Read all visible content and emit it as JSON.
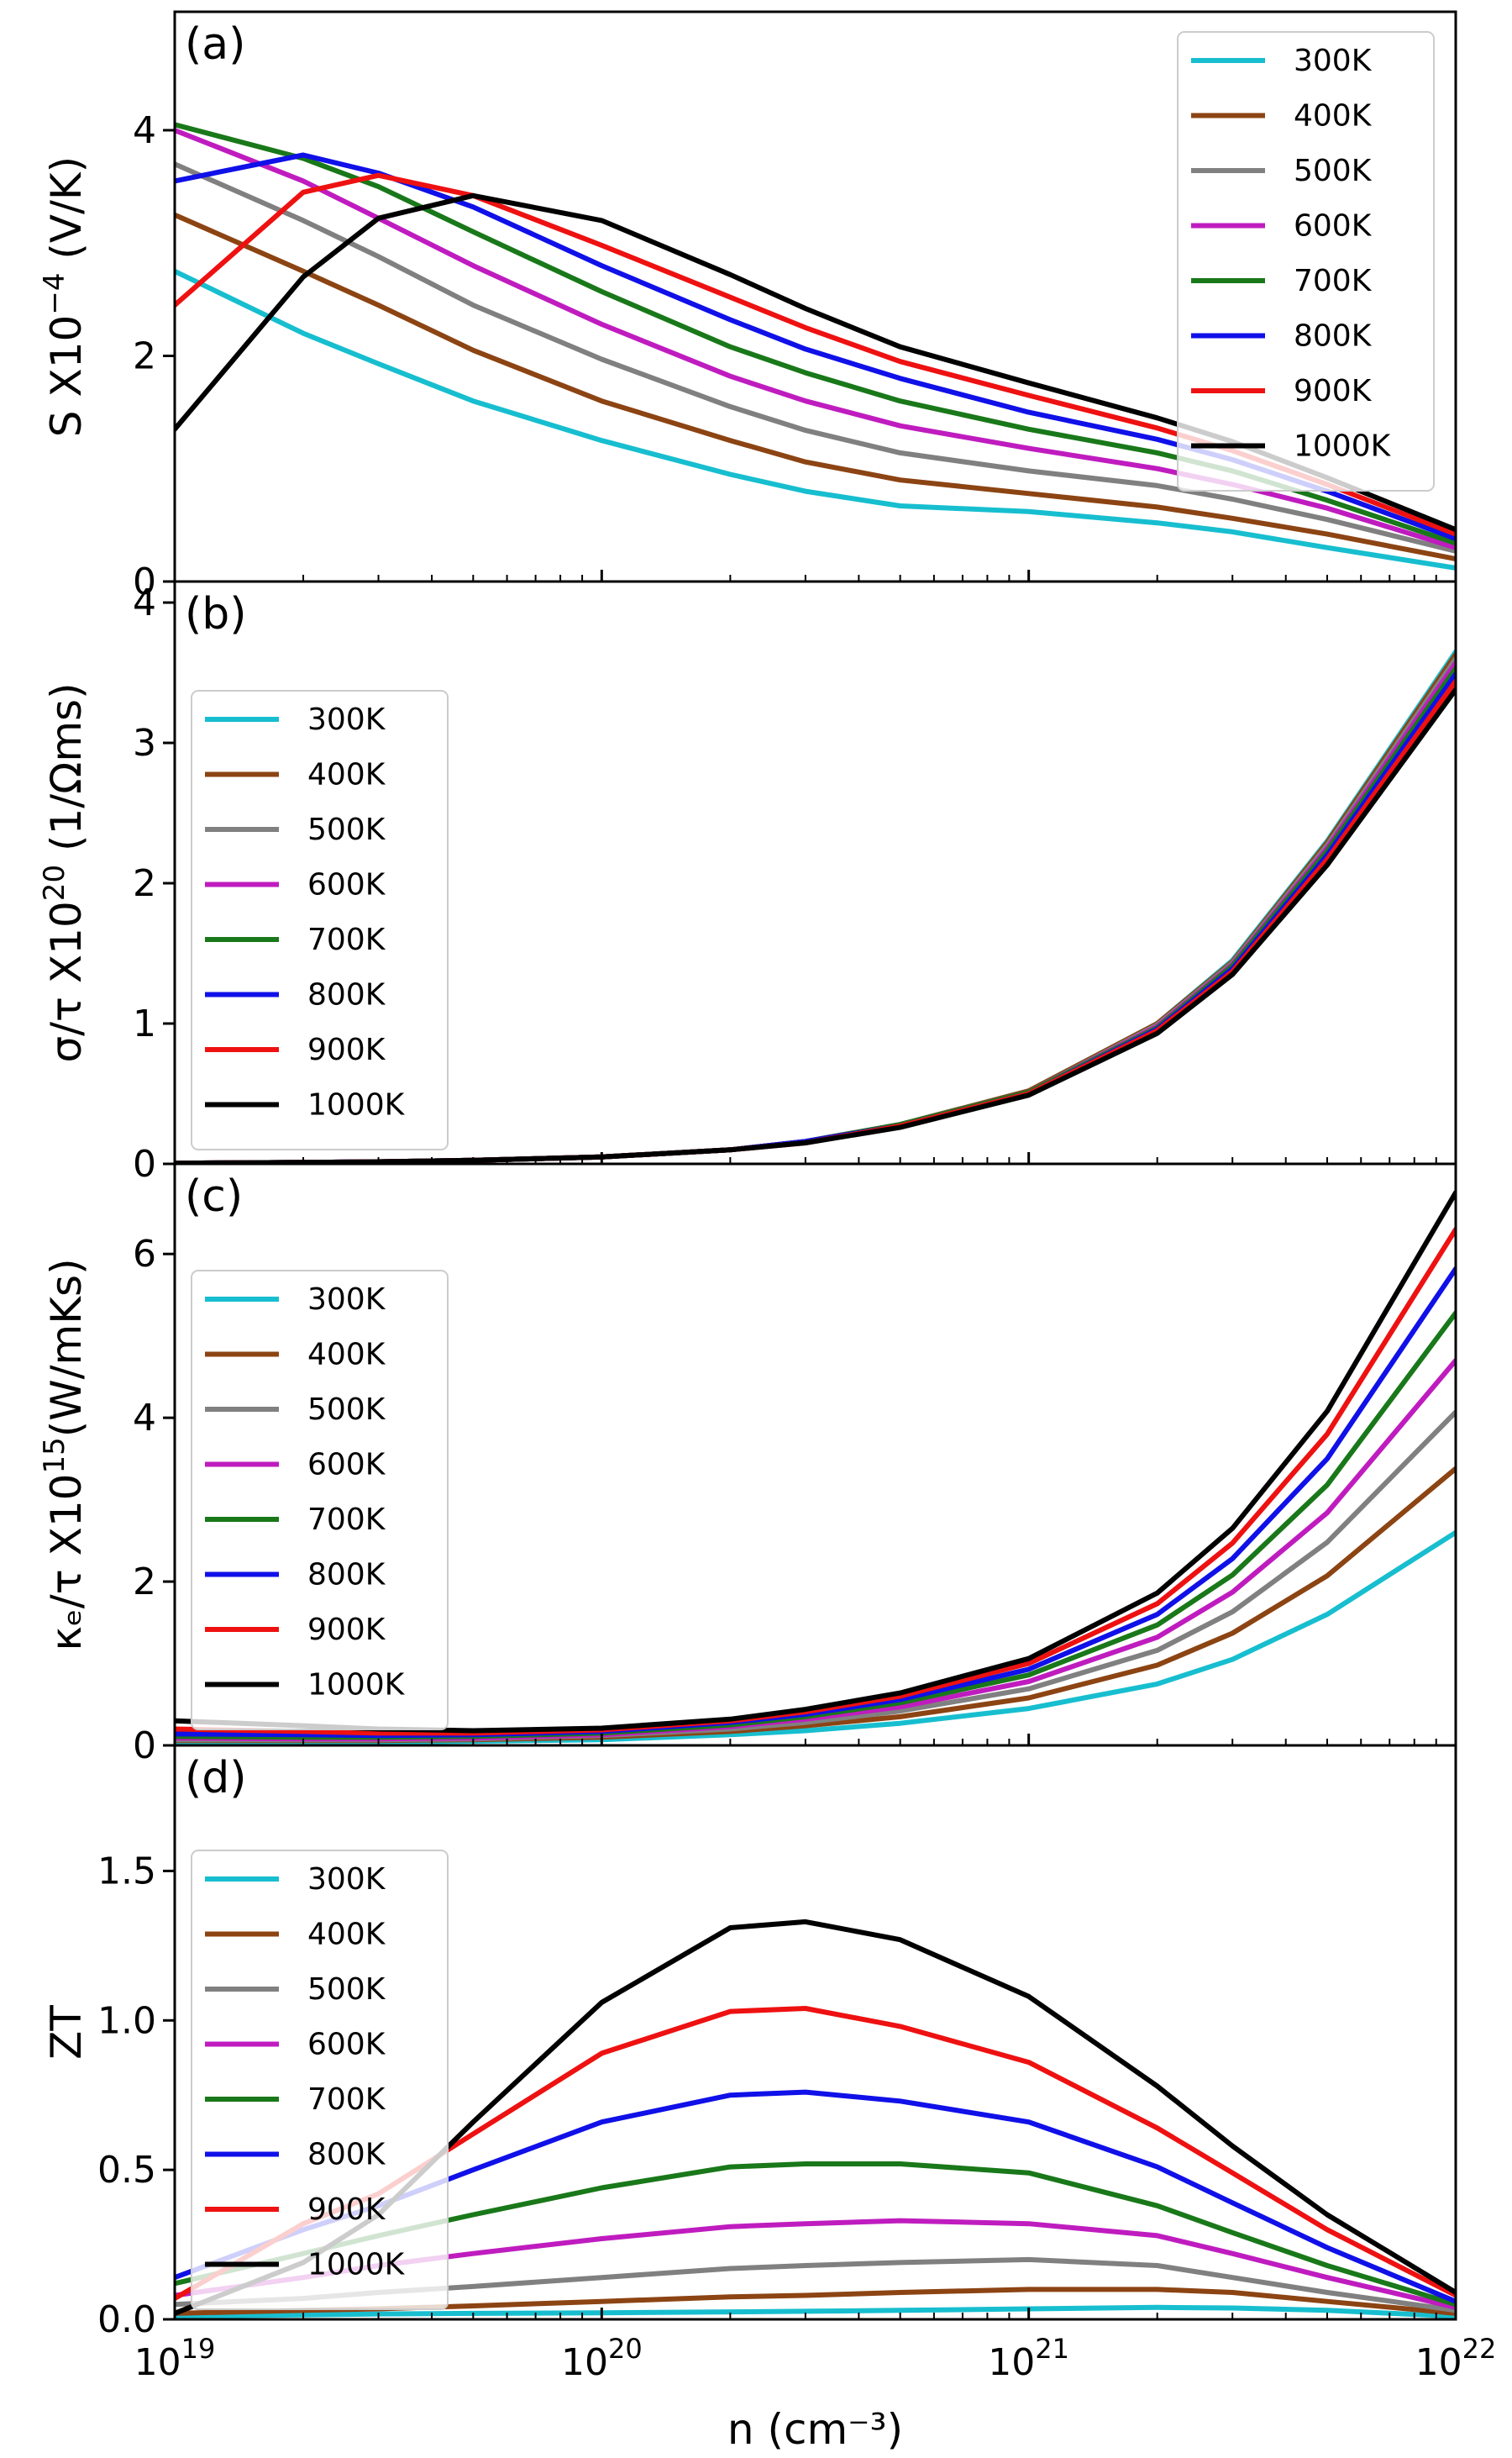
{
  "figure": {
    "xlabel": "n (cm⁻³)",
    "xlim": [
      1e+19,
      1e+22
    ],
    "x_tick_labels": [
      {
        "base": "10",
        "exp": "19"
      },
      {
        "base": "10",
        "exp": "20"
      },
      {
        "base": "10",
        "exp": "21"
      },
      {
        "base": "10",
        "exp": "22"
      }
    ]
  },
  "chart_data": [
    {
      "type": "line",
      "panel_label": "(a)",
      "ylabel": {
        "main": "S X10",
        "sup": "−4",
        "unit": " (V/K)"
      },
      "ylim": [
        0,
        5.05
      ],
      "yticks": [
        0,
        2,
        4
      ],
      "ytick_labels": [
        "0",
        "2",
        "4"
      ],
      "legend_position": "top-right",
      "x": [
        1e+19,
        2e+19,
        3e+19,
        5e+19,
        1e+20,
        2e+20,
        3e+20,
        5e+20,
        1e+21,
        2e+21,
        3e+21,
        5e+21,
        1e+22
      ],
      "series": [
        {
          "name": "300K",
          "color": "#17becf",
          "values": [
            2.75,
            2.2,
            1.93,
            1.6,
            1.25,
            0.95,
            0.8,
            0.67,
            0.62,
            0.52,
            0.44,
            0.3,
            0.12
          ]
        },
        {
          "name": "400K",
          "color": "#8c4413",
          "values": [
            3.25,
            2.75,
            2.45,
            2.05,
            1.6,
            1.25,
            1.06,
            0.9,
            0.78,
            0.66,
            0.56,
            0.42,
            0.2
          ]
        },
        {
          "name": "500K",
          "color": "#808080",
          "values": [
            3.7,
            3.2,
            2.88,
            2.45,
            1.97,
            1.55,
            1.34,
            1.14,
            0.98,
            0.85,
            0.73,
            0.55,
            0.27
          ]
        },
        {
          "name": "600K",
          "color": "#bf1cbf",
          "values": [
            4.0,
            3.55,
            3.22,
            2.8,
            2.28,
            1.82,
            1.6,
            1.38,
            1.18,
            1.0,
            0.86,
            0.65,
            0.3
          ]
        },
        {
          "name": "700K",
          "color": "#197819",
          "values": [
            4.05,
            3.75,
            3.5,
            3.1,
            2.57,
            2.08,
            1.85,
            1.6,
            1.35,
            1.14,
            0.98,
            0.72,
            0.34
          ]
        },
        {
          "name": "800K",
          "color": "#1010e8",
          "values": [
            3.55,
            3.78,
            3.62,
            3.32,
            2.8,
            2.32,
            2.06,
            1.8,
            1.5,
            1.26,
            1.08,
            0.8,
            0.38
          ]
        },
        {
          "name": "900K",
          "color": "#ee1111",
          "values": [
            2.45,
            3.45,
            3.6,
            3.42,
            2.98,
            2.52,
            2.25,
            1.95,
            1.65,
            1.36,
            1.16,
            0.86,
            0.42
          ]
        },
        {
          "name": "1000K",
          "color": "#000000",
          "values": [
            1.35,
            2.7,
            3.22,
            3.42,
            3.2,
            2.72,
            2.42,
            2.08,
            1.76,
            1.45,
            1.24,
            0.92,
            0.46
          ]
        }
      ]
    },
    {
      "type": "line",
      "panel_label": "(b)",
      "ylabel": {
        "main": "σ/τ X10",
        "sup": "20",
        "unit": " (1/Ωms)"
      },
      "ylim": [
        0,
        4.15
      ],
      "yticks": [
        0,
        1,
        2,
        3,
        4
      ],
      "ytick_labels": [
        "0",
        "1",
        "2",
        "3",
        "4"
      ],
      "legend_position": "upper-left",
      "x": [
        1e+19,
        2e+19,
        3e+19,
        5e+19,
        1e+20,
        2e+20,
        3e+20,
        5e+20,
        1e+21,
        2e+21,
        3e+21,
        5e+21,
        1e+22
      ],
      "series": [
        {
          "name": "300K",
          "color": "#17becf",
          "values": [
            0.005,
            0.01,
            0.015,
            0.025,
            0.05,
            0.1,
            0.16,
            0.28,
            0.52,
            1.0,
            1.45,
            2.3,
            3.65
          ]
        },
        {
          "name": "400K",
          "color": "#8c4413",
          "values": [
            0.005,
            0.01,
            0.015,
            0.025,
            0.05,
            0.1,
            0.16,
            0.28,
            0.52,
            1.0,
            1.44,
            2.29,
            3.63
          ]
        },
        {
          "name": "500K",
          "color": "#808080",
          "values": [
            0.005,
            0.01,
            0.015,
            0.025,
            0.05,
            0.1,
            0.16,
            0.28,
            0.51,
            0.99,
            1.43,
            2.27,
            3.6
          ]
        },
        {
          "name": "600K",
          "color": "#bf1cbf",
          "values": [
            0.005,
            0.01,
            0.015,
            0.025,
            0.05,
            0.1,
            0.16,
            0.28,
            0.51,
            0.98,
            1.42,
            2.25,
            3.57
          ]
        },
        {
          "name": "700K",
          "color": "#197819",
          "values": [
            0.005,
            0.01,
            0.015,
            0.025,
            0.05,
            0.1,
            0.16,
            0.28,
            0.51,
            0.97,
            1.41,
            2.23,
            3.53
          ]
        },
        {
          "name": "800K",
          "color": "#1010e8",
          "values": [
            0.005,
            0.01,
            0.015,
            0.025,
            0.05,
            0.1,
            0.16,
            0.27,
            0.5,
            0.96,
            1.39,
            2.2,
            3.49
          ]
        },
        {
          "name": "900K",
          "color": "#ee1111",
          "values": [
            0.005,
            0.01,
            0.015,
            0.025,
            0.05,
            0.1,
            0.15,
            0.27,
            0.5,
            0.95,
            1.37,
            2.17,
            3.44
          ]
        },
        {
          "name": "1000K",
          "color": "#000000",
          "values": [
            0.005,
            0.01,
            0.015,
            0.025,
            0.05,
            0.1,
            0.15,
            0.26,
            0.49,
            0.93,
            1.35,
            2.13,
            3.38
          ]
        }
      ]
    },
    {
      "type": "line",
      "panel_label": "(c)",
      "ylabel": {
        "main": "κₑ/τ X10",
        "sup": "15",
        "unit": "(W/mKs)"
      },
      "ylim": [
        0,
        7.1
      ],
      "yticks": [
        0,
        2,
        4,
        6
      ],
      "ytick_labels": [
        "0",
        "2",
        "4",
        "6"
      ],
      "legend_position": "upper-left",
      "x": [
        1e+19,
        2e+19,
        3e+19,
        5e+19,
        1e+20,
        2e+20,
        3e+20,
        5e+20,
        1e+21,
        2e+21,
        3e+21,
        5e+21,
        1e+22
      ],
      "series": [
        {
          "name": "300K",
          "color": "#17becf",
          "values": [
            0.04,
            0.04,
            0.04,
            0.05,
            0.07,
            0.13,
            0.18,
            0.27,
            0.45,
            0.75,
            1.05,
            1.6,
            2.6
          ]
        },
        {
          "name": "400K",
          "color": "#8c4413",
          "values": [
            0.06,
            0.06,
            0.06,
            0.07,
            0.1,
            0.17,
            0.24,
            0.35,
            0.58,
            0.98,
            1.37,
            2.07,
            3.38
          ]
        },
        {
          "name": "500K",
          "color": "#808080",
          "values": [
            0.07,
            0.07,
            0.07,
            0.08,
            0.12,
            0.2,
            0.28,
            0.42,
            0.69,
            1.16,
            1.63,
            2.48,
            4.07
          ]
        },
        {
          "name": "600K",
          "color": "#bf1cbf",
          "values": [
            0.09,
            0.08,
            0.08,
            0.09,
            0.13,
            0.23,
            0.32,
            0.47,
            0.78,
            1.32,
            1.87,
            2.84,
            4.7
          ]
        },
        {
          "name": "700K",
          "color": "#197819",
          "values": [
            0.11,
            0.1,
            0.1,
            0.11,
            0.15,
            0.25,
            0.35,
            0.52,
            0.86,
            1.47,
            2.08,
            3.18,
            5.28
          ]
        },
        {
          "name": "800K",
          "color": "#1010e8",
          "values": [
            0.14,
            0.13,
            0.12,
            0.13,
            0.17,
            0.28,
            0.38,
            0.56,
            0.93,
            1.6,
            2.28,
            3.5,
            5.82
          ]
        },
        {
          "name": "900K",
          "color": "#ee1111",
          "values": [
            0.2,
            0.17,
            0.15,
            0.15,
            0.19,
            0.3,
            0.41,
            0.6,
            1.0,
            1.73,
            2.47,
            3.8,
            6.3
          ]
        },
        {
          "name": "1000K",
          "color": "#000000",
          "values": [
            0.3,
            0.24,
            0.2,
            0.18,
            0.21,
            0.32,
            0.44,
            0.64,
            1.06,
            1.86,
            2.65,
            4.08,
            6.75
          ]
        }
      ]
    },
    {
      "type": "line",
      "panel_label": "(d)",
      "ylabel": {
        "main": "ZT",
        "sup": "",
        "unit": ""
      },
      "ylim": [
        0,
        1.92
      ],
      "yticks": [
        0,
        0.5,
        1.0,
        1.5
      ],
      "ytick_labels": [
        "0.0",
        "0.5",
        "1.0",
        "1.5"
      ],
      "legend_position": "upper-left",
      "x": [
        1e+19,
        2e+19,
        3e+19,
        5e+19,
        1e+20,
        2e+20,
        3e+20,
        5e+20,
        1e+21,
        2e+21,
        3e+21,
        5e+21,
        1e+22
      ],
      "series": [
        {
          "name": "300K",
          "color": "#17becf",
          "values": [
            0.01,
            0.015,
            0.018,
            0.02,
            0.022,
            0.025,
            0.027,
            0.03,
            0.035,
            0.04,
            0.038,
            0.03,
            0.01
          ]
        },
        {
          "name": "400K",
          "color": "#8c4413",
          "values": [
            0.02,
            0.03,
            0.035,
            0.045,
            0.06,
            0.075,
            0.08,
            0.09,
            0.1,
            0.1,
            0.09,
            0.06,
            0.02
          ]
        },
        {
          "name": "500K",
          "color": "#808080",
          "values": [
            0.05,
            0.07,
            0.09,
            0.11,
            0.14,
            0.17,
            0.18,
            0.19,
            0.2,
            0.18,
            0.14,
            0.09,
            0.03
          ]
        },
        {
          "name": "600K",
          "color": "#bf1cbf",
          "values": [
            0.08,
            0.14,
            0.18,
            0.22,
            0.27,
            0.31,
            0.32,
            0.33,
            0.32,
            0.28,
            0.22,
            0.14,
            0.04
          ]
        },
        {
          "name": "700K",
          "color": "#197819",
          "values": [
            0.12,
            0.22,
            0.28,
            0.35,
            0.44,
            0.51,
            0.52,
            0.52,
            0.49,
            0.38,
            0.29,
            0.18,
            0.05
          ]
        },
        {
          "name": "800K",
          "color": "#1010e8",
          "values": [
            0.14,
            0.3,
            0.38,
            0.5,
            0.66,
            0.75,
            0.76,
            0.73,
            0.66,
            0.51,
            0.39,
            0.24,
            0.06
          ]
        },
        {
          "name": "900K",
          "color": "#ee1111",
          "values": [
            0.07,
            0.32,
            0.42,
            0.62,
            0.89,
            1.03,
            1.04,
            0.98,
            0.86,
            0.64,
            0.49,
            0.3,
            0.08
          ]
        },
        {
          "name": "1000K",
          "color": "#000000",
          "values": [
            0.02,
            0.19,
            0.35,
            0.66,
            1.06,
            1.31,
            1.33,
            1.27,
            1.08,
            0.78,
            0.58,
            0.35,
            0.09
          ]
        }
      ]
    }
  ]
}
